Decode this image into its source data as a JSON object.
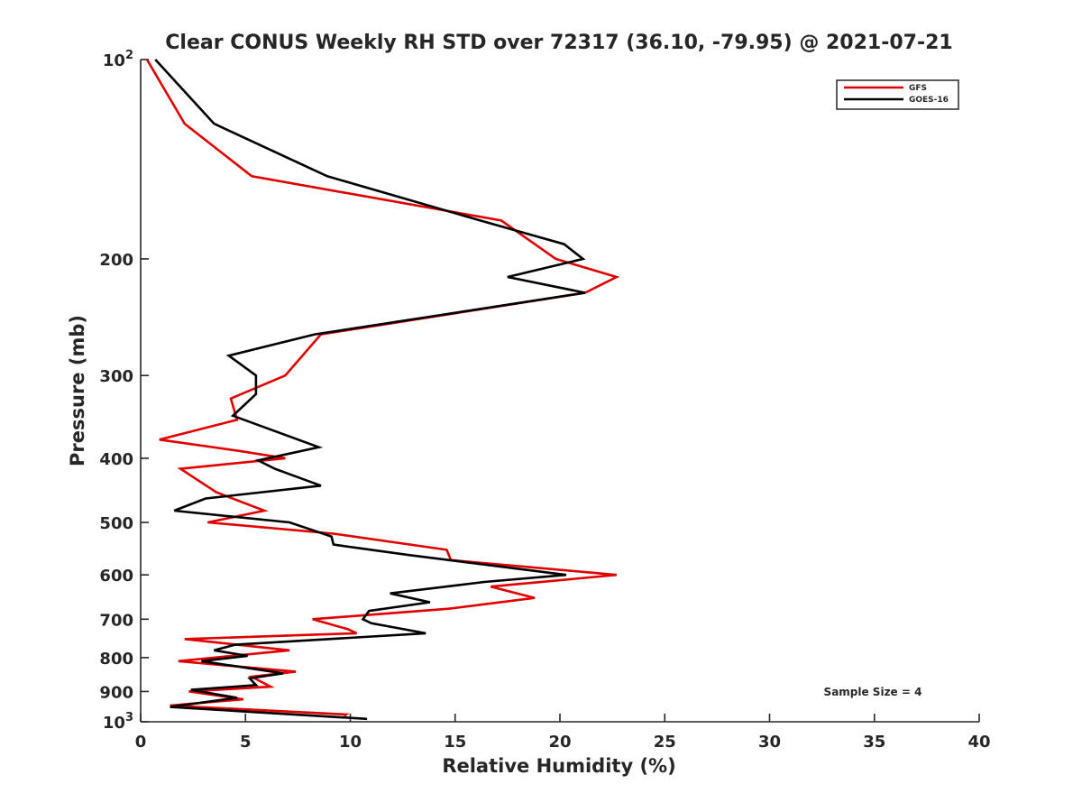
{
  "chart_data": {
    "type": "line",
    "title": "Clear CONUS Weekly RH STD over 72317 (36.10, -79.95) @ 2021-07-21",
    "xlabel": "Relative Humidity (%)",
    "ylabel": "Pressure (mb)",
    "xlim": [
      0,
      40
    ],
    "ylim": [
      100,
      1000
    ],
    "y_scale": "log",
    "y_reversed": true,
    "grid": false,
    "legend_position": "top-right",
    "x_ticks": [
      0,
      5,
      10,
      15,
      20,
      25,
      30,
      35,
      40
    ],
    "x_tick_labels": [
      "0",
      "5",
      "10",
      "15",
      "20",
      "25",
      "30",
      "35",
      "40"
    ],
    "y_ticks": [
      100,
      200,
      300,
      400,
      500,
      600,
      700,
      800,
      900,
      1000
    ],
    "y_tick_labels": [
      {
        "base": "10",
        "exp": "2"
      },
      {
        "base": "200",
        "exp": ""
      },
      {
        "base": "300",
        "exp": ""
      },
      {
        "base": "400",
        "exp": ""
      },
      {
        "base": "500",
        "exp": ""
      },
      {
        "base": "600",
        "exp": ""
      },
      {
        "base": "700",
        "exp": ""
      },
      {
        "base": "800",
        "exp": ""
      },
      {
        "base": "900",
        "exp": ""
      },
      {
        "base": "10",
        "exp": "3"
      }
    ],
    "annotation": "Sample Size = 4",
    "series": [
      {
        "name": "GFS",
        "color": "#e00000",
        "points": [
          [
            0.3,
            100
          ],
          [
            2.1,
            125
          ],
          [
            5.3,
            150
          ],
          [
            17.2,
            175
          ],
          [
            19.8,
            200
          ],
          [
            22.7,
            213
          ],
          [
            21.2,
            225
          ],
          [
            8.6,
            260
          ],
          [
            6.9,
            300
          ],
          [
            4.3,
            325
          ],
          [
            4.6,
            350
          ],
          [
            0.9,
            375
          ],
          [
            4.7,
            390
          ],
          [
            6.9,
            400
          ],
          [
            1.9,
            415
          ],
          [
            3.6,
            450
          ],
          [
            5.9,
            480
          ],
          [
            3.2,
            500
          ],
          [
            9.2,
            520
          ],
          [
            14.6,
            550
          ],
          [
            14.8,
            570
          ],
          [
            22.7,
            600
          ],
          [
            16.7,
            625
          ],
          [
            18.8,
            650
          ],
          [
            14.7,
            675
          ],
          [
            8.2,
            700
          ],
          [
            9.9,
            725
          ],
          [
            10.3,
            735
          ],
          [
            2.1,
            750
          ],
          [
            7.1,
            780
          ],
          [
            1.8,
            810
          ],
          [
            7.4,
            840
          ],
          [
            5.3,
            855
          ],
          [
            6.2,
            885
          ],
          [
            2.3,
            900
          ],
          [
            4.9,
            925
          ],
          [
            1.4,
            945
          ],
          [
            9.8,
            975
          ],
          [
            9.7,
            980
          ]
        ]
      },
      {
        "name": "GOES-16",
        "color": "#000000",
        "points": [
          [
            0.7,
            100
          ],
          [
            3.5,
            125
          ],
          [
            8.9,
            150
          ],
          [
            16.2,
            175
          ],
          [
            20.2,
            190
          ],
          [
            21.1,
            200
          ],
          [
            17.5,
            213
          ],
          [
            21.2,
            225
          ],
          [
            8.3,
            260
          ],
          [
            4.2,
            280
          ],
          [
            5.5,
            300
          ],
          [
            5.5,
            320
          ],
          [
            4.4,
            345
          ],
          [
            8.5,
            385
          ],
          [
            5.6,
            403
          ],
          [
            6.4,
            415
          ],
          [
            8.6,
            440
          ],
          [
            3.1,
            460
          ],
          [
            1.6,
            480
          ],
          [
            7.1,
            500
          ],
          [
            9.1,
            525
          ],
          [
            9.2,
            540
          ],
          [
            12.8,
            560
          ],
          [
            20.3,
            600
          ],
          [
            16.4,
            615
          ],
          [
            11.9,
            640
          ],
          [
            13.8,
            660
          ],
          [
            10.9,
            680
          ],
          [
            10.6,
            700
          ],
          [
            11.0,
            710
          ],
          [
            13.6,
            735
          ],
          [
            4.5,
            765
          ],
          [
            3.5,
            780
          ],
          [
            5.1,
            795
          ],
          [
            2.9,
            810
          ],
          [
            6.8,
            845
          ],
          [
            5.2,
            860
          ],
          [
            5.5,
            880
          ],
          [
            2.4,
            895
          ],
          [
            4.6,
            920
          ],
          [
            1.4,
            950
          ],
          [
            10.8,
            990
          ]
        ]
      }
    ]
  }
}
